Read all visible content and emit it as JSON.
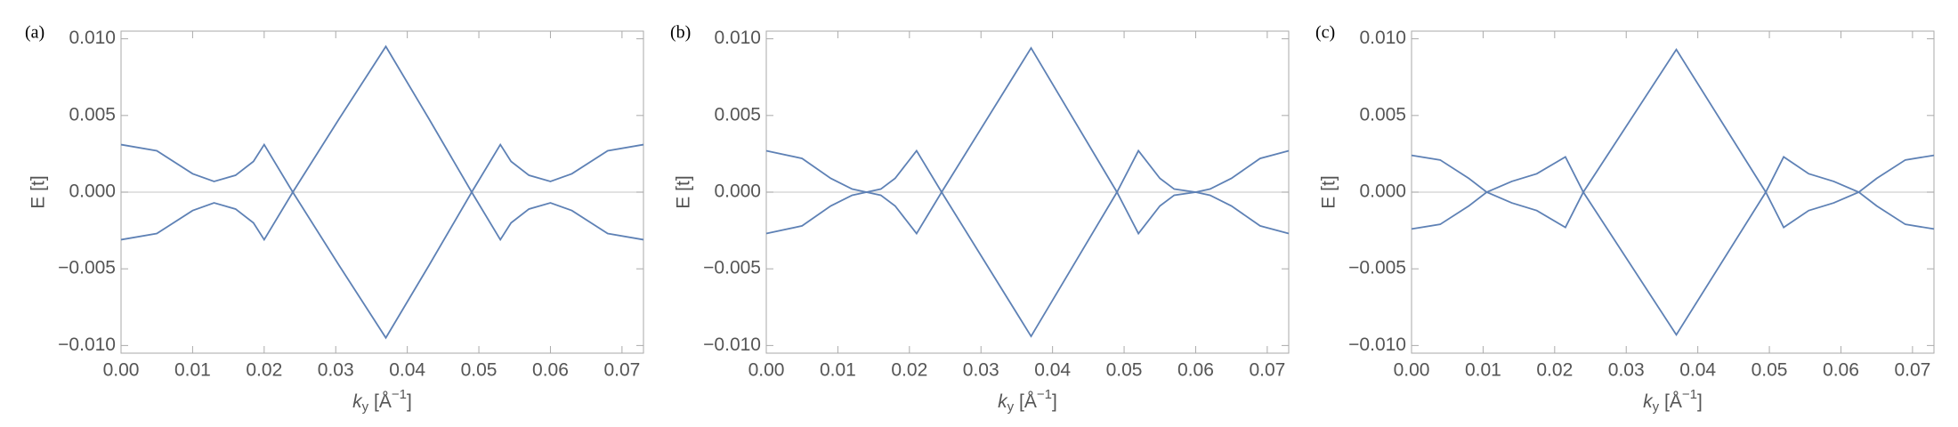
{
  "chart_data": [
    {
      "type": "line",
      "label": "(a)",
      "ylabel": "E [t]",
      "xlabel": [
        "k",
        "y",
        " [Å",
        "−1",
        "]"
      ],
      "x": [
        0,
        0.005,
        0.01,
        0.013,
        0.016,
        0.0185,
        0.02,
        0.024,
        0.0305,
        0.037,
        0.043,
        0.049,
        0.053,
        0.0545,
        0.057,
        0.06,
        0.063,
        0.068,
        0.073
      ],
      "series": [
        {
          "color": "#5e81b5",
          "values": [
            0.0031,
            0.0027,
            0.0012,
            0.0007,
            0.0011,
            0.002,
            0.0031,
            0,
            -0.0048,
            -0.0095,
            -0.0048,
            0,
            0.0031,
            0.002,
            0.0011,
            0.0007,
            0.0012,
            0.0027,
            0.0031
          ]
        },
        {
          "color": "#5e81b5",
          "values": [
            -0.0031,
            -0.0027,
            -0.0012,
            -0.0007,
            -0.0011,
            -0.002,
            -0.0031,
            0,
            0.0048,
            0.0095,
            0.0048,
            0,
            -0.0031,
            -0.002,
            -0.0011,
            -0.0007,
            -0.0012,
            -0.0027,
            -0.0031
          ]
        }
      ],
      "xlim": [
        0,
        0.073
      ],
      "ylim": [
        -0.0105,
        0.0105
      ],
      "xticks": [
        {
          "value": 0,
          "label": "0.00"
        },
        0.01,
        0.02,
        0.03,
        0.04,
        0.05,
        0.06,
        0.07
      ],
      "yticks": [
        {
          "value": -0.01,
          "label": "−0.010"
        },
        {
          "value": -0.005,
          "label": "−0.005"
        },
        {
          "value": 0,
          "label": "0.000"
        },
        {
          "value": 0.005,
          "label": "0.005"
        },
        {
          "value": 0.01,
          "label": "0.010"
        }
      ],
      "zero_line": true
    },
    {
      "type": "line",
      "label": "(b)",
      "ylabel": "E [t]",
      "xlabel": [
        "k",
        "y",
        " [Å",
        "−1",
        "]"
      ],
      "x": [
        0,
        0.005,
        0.009,
        0.012,
        0.014,
        0.016,
        0.018,
        0.021,
        0.0245,
        0.037,
        0.049,
        0.052,
        0.055,
        0.057,
        0.06,
        0.062,
        0.065,
        0.069,
        0.073
      ],
      "series": [
        {
          "color": "#5e81b5",
          "values": [
            0.0027,
            0.0022,
            0.0009,
            0.0002,
            0,
            0.0002,
            0.0009,
            0.0027,
            0,
            -0.0094,
            0,
            0.0027,
            0.0009,
            0.0002,
            0,
            0.0002,
            0.0009,
            0.0022,
            0.0027
          ]
        },
        {
          "color": "#5e81b5",
          "values": [
            -0.0027,
            -0.0022,
            -0.0009,
            -0.0002,
            0,
            -0.0002,
            -0.0009,
            -0.0027,
            0,
            0.0094,
            0,
            -0.0027,
            -0.0009,
            -0.0002,
            0,
            -0.0002,
            -0.0009,
            -0.0022,
            -0.0027
          ]
        }
      ],
      "xlim": [
        0,
        0.073
      ],
      "ylim": [
        -0.0105,
        0.0105
      ],
      "xticks": [
        {
          "value": 0,
          "label": "0.00"
        },
        0.01,
        0.02,
        0.03,
        0.04,
        0.05,
        0.06,
        0.07
      ],
      "yticks": [
        {
          "value": -0.01,
          "label": "−0.010"
        },
        {
          "value": -0.005,
          "label": "−0.005"
        },
        {
          "value": 0,
          "label": "0.000"
        },
        {
          "value": 0.005,
          "label": "0.005"
        },
        {
          "value": 0.01,
          "label": "0.010"
        }
      ],
      "zero_line": true
    },
    {
      "type": "line",
      "label": "(c)",
      "ylabel": "E [t]",
      "xlabel": [
        "k",
        "y",
        " [Å",
        "−1",
        "]"
      ],
      "x": [
        0,
        0.004,
        0.008,
        0.0105,
        0.014,
        0.0175,
        0.0215,
        0.024,
        0.037,
        0.0495,
        0.052,
        0.0555,
        0.059,
        0.0625,
        0.065,
        0.069,
        0.073
      ],
      "series": [
        {
          "color": "#5e81b5",
          "values": [
            0.0024,
            0.0021,
            0.0009,
            0,
            -0.0007,
            -0.0012,
            -0.0023,
            0,
            0.0093,
            0,
            -0.0023,
            -0.0012,
            -0.0007,
            0,
            0.0009,
            0.0021,
            0.0024
          ]
        },
        {
          "color": "#5e81b5",
          "values": [
            -0.0024,
            -0.0021,
            -0.0009,
            0,
            0.0007,
            0.0012,
            0.0023,
            0,
            -0.0093,
            0,
            0.0023,
            0.0012,
            0.0007,
            0,
            -0.0009,
            -0.0021,
            -0.0024
          ]
        }
      ],
      "xlim": [
        0,
        0.073
      ],
      "ylim": [
        -0.0105,
        0.0105
      ],
      "xticks": [
        {
          "value": 0,
          "label": "0.00"
        },
        0.01,
        0.02,
        0.03,
        0.04,
        0.05,
        0.06,
        0.07
      ],
      "yticks": [
        {
          "value": -0.01,
          "label": "−0.010"
        },
        {
          "value": -0.005,
          "label": "−0.005"
        },
        {
          "value": 0,
          "label": "0.000"
        },
        {
          "value": 0.005,
          "label": "0.005"
        },
        {
          "value": 0.01,
          "label": "0.010"
        }
      ],
      "zero_line": true
    }
  ]
}
